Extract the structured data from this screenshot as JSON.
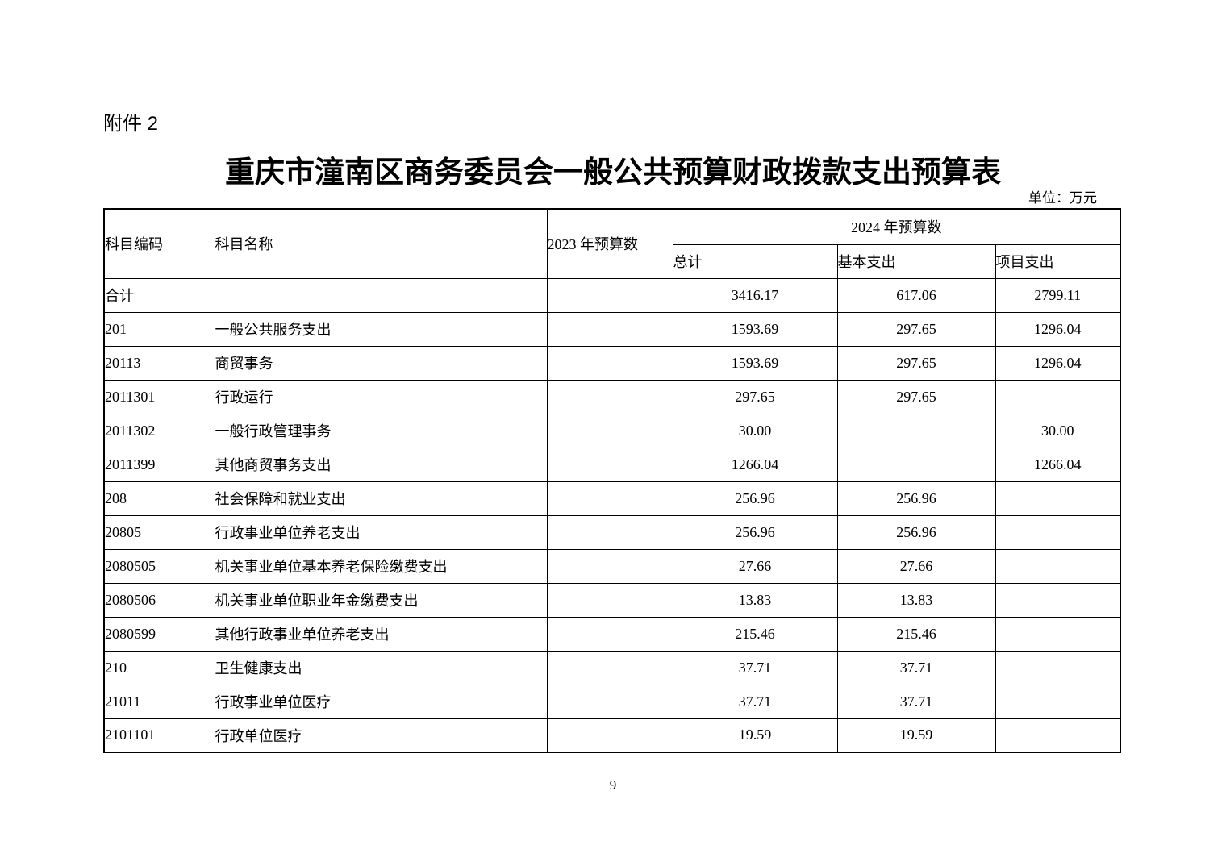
{
  "page": {
    "attachment_label": "附件 2",
    "title": "重庆市潼南区商务委员会一般公共预算财政拨款支出预算表",
    "unit_note": "单位：万元",
    "page_number": "9"
  },
  "table": {
    "headers": {
      "subject_code": "科目编码",
      "subject_name": "科目名称",
      "budget_2023": "2023 年预算数",
      "budget_2024": "2024 年预算数",
      "total": "总计",
      "basic_expenditure": "基本支出",
      "project_expenditure": "项目支出"
    },
    "rows": [
      {
        "code": "合计",
        "name": "",
        "merged": true,
        "level": 0,
        "y2023": "",
        "total": "3416.17",
        "basic": "617.06",
        "project": "2799.11"
      },
      {
        "code": "201",
        "name": "一般公共服务支出",
        "merged": false,
        "level": 1,
        "y2023": "",
        "total": "1593.69",
        "basic": "297.65",
        "project": "1296.04"
      },
      {
        "code": "20113",
        "name": "商贸事务",
        "merged": false,
        "level": 2,
        "y2023": "",
        "total": "1593.69",
        "basic": "297.65",
        "project": "1296.04"
      },
      {
        "code": "2011301",
        "name": "行政运行",
        "merged": false,
        "level": 3,
        "y2023": "",
        "total": "297.65",
        "basic": "297.65",
        "project": ""
      },
      {
        "code": "2011302",
        "name": "一般行政管理事务",
        "merged": false,
        "level": 3,
        "y2023": "",
        "total": "30.00",
        "basic": "",
        "project": "30.00"
      },
      {
        "code": "2011399",
        "name": "其他商贸事务支出",
        "merged": false,
        "level": 3,
        "y2023": "",
        "total": "1266.04",
        "basic": "",
        "project": "1266.04"
      },
      {
        "code": "208",
        "name": "社会保障和就业支出",
        "merged": false,
        "level": 1,
        "y2023": "",
        "total": "256.96",
        "basic": "256.96",
        "project": ""
      },
      {
        "code": "20805",
        "name": "行政事业单位养老支出",
        "merged": false,
        "level": 2,
        "y2023": "",
        "total": "256.96",
        "basic": "256.96",
        "project": ""
      },
      {
        "code": "2080505",
        "name": "机关事业单位基本养老保险缴费支出",
        "merged": false,
        "level": 3,
        "y2023": "",
        "total": "27.66",
        "basic": "27.66",
        "project": ""
      },
      {
        "code": "2080506",
        "name": "机关事业单位职业年金缴费支出",
        "merged": false,
        "level": 3,
        "y2023": "",
        "total": "13.83",
        "basic": "13.83",
        "project": ""
      },
      {
        "code": "2080599",
        "name": "其他行政事业单位养老支出",
        "merged": false,
        "level": 3,
        "y2023": "",
        "total": "215.46",
        "basic": "215.46",
        "project": ""
      },
      {
        "code": "210",
        "name": "卫生健康支出",
        "merged": false,
        "level": 1,
        "y2023": "",
        "total": "37.71",
        "basic": "37.71",
        "project": ""
      },
      {
        "code": "21011",
        "name": "行政事业单位医疗",
        "merged": false,
        "level": 2,
        "y2023": "",
        "total": "37.71",
        "basic": "37.71",
        "project": ""
      },
      {
        "code": "2101101",
        "name": "行政单位医疗",
        "merged": false,
        "level": 3,
        "y2023": "",
        "total": "19.59",
        "basic": "19.59",
        "project": ""
      }
    ]
  }
}
